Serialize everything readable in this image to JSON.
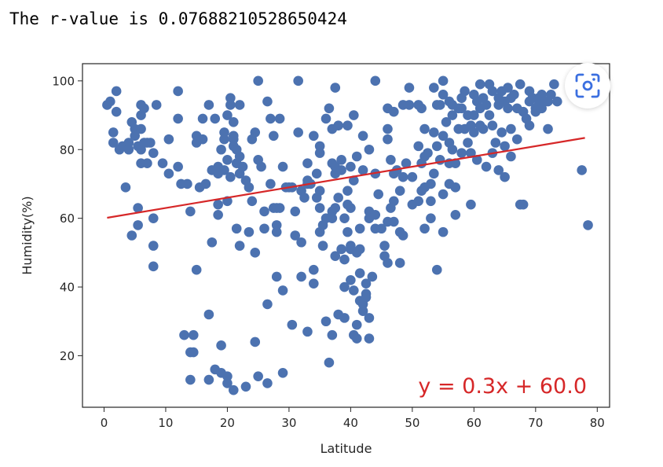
{
  "output": {
    "text": "The r-value is 0.07688210528650424"
  },
  "icons": {
    "scan_button": "visual-search-icon"
  },
  "colors": {
    "points": "#4c72b0",
    "regression_line": "#d62728",
    "annotation": "#d62728",
    "icon": "#3b6fe0"
  },
  "chart_data": {
    "type": "scatter",
    "title": "",
    "xlabel": "Latitude",
    "ylabel": "Humidity(%)",
    "xlim": [
      -3.5,
      82
    ],
    "ylim": [
      5,
      105
    ],
    "xticks": [
      0,
      10,
      20,
      30,
      40,
      50,
      60,
      70,
      80
    ],
    "yticks": [
      20,
      40,
      60,
      80,
      100
    ],
    "grid": false,
    "regression": {
      "slope": 0.3,
      "intercept": 60.0,
      "x_range": [
        0.5,
        78
      ],
      "label": "y = 0.3x + 60.0"
    },
    "points": [
      [
        0.5,
        93
      ],
      [
        1,
        94
      ],
      [
        1.5,
        82
      ],
      [
        1.5,
        85
      ],
      [
        2,
        97
      ],
      [
        2,
        91
      ],
      [
        2.5,
        80
      ],
      [
        3,
        81
      ],
      [
        3.5,
        69
      ],
      [
        4,
        82
      ],
      [
        4,
        80
      ],
      [
        4.5,
        55
      ],
      [
        4.5,
        88
      ],
      [
        5,
        86
      ],
      [
        5,
        84
      ],
      [
        5.5,
        81
      ],
      [
        5.5,
        63
      ],
      [
        5.5,
        58
      ],
      [
        6,
        93
      ],
      [
        6,
        90
      ],
      [
        6,
        86
      ],
      [
        6,
        80
      ],
      [
        6,
        76
      ],
      [
        6.5,
        92
      ],
      [
        6.5,
        82
      ],
      [
        7,
        82
      ],
      [
        7,
        76
      ],
      [
        7.5,
        82
      ],
      [
        8,
        79
      ],
      [
        8,
        60
      ],
      [
        8,
        52
      ],
      [
        8,
        46
      ],
      [
        8.5,
        93
      ],
      [
        9.5,
        76
      ],
      [
        10.5,
        73
      ],
      [
        10.5,
        83
      ],
      [
        12,
        97
      ],
      [
        12,
        89
      ],
      [
        12,
        75
      ],
      [
        12.5,
        70
      ],
      [
        13,
        26
      ],
      [
        13.5,
        70
      ],
      [
        14,
        62
      ],
      [
        14,
        21
      ],
      [
        14,
        13
      ],
      [
        14.5,
        26
      ],
      [
        14.5,
        21
      ],
      [
        15,
        84
      ],
      [
        15,
        82
      ],
      [
        15,
        45
      ],
      [
        15.5,
        69
      ],
      [
        16,
        83
      ],
      [
        16,
        89
      ],
      [
        16.5,
        70
      ],
      [
        17,
        32
      ],
      [
        17,
        13
      ],
      [
        17,
        93
      ],
      [
        17.5,
        74
      ],
      [
        17.5,
        53
      ],
      [
        18,
        89
      ],
      [
        18,
        16
      ],
      [
        18.5,
        75
      ],
      [
        18.5,
        73
      ],
      [
        18.5,
        64
      ],
      [
        18.5,
        61
      ],
      [
        19,
        23
      ],
      [
        19,
        15
      ],
      [
        19,
        80
      ],
      [
        19.5,
        83
      ],
      [
        19.5,
        85
      ],
      [
        19.5,
        74
      ],
      [
        20,
        90
      ],
      [
        20,
        77
      ],
      [
        20,
        65
      ],
      [
        20,
        14
      ],
      [
        20,
        12
      ],
      [
        20.5,
        95
      ],
      [
        20.5,
        93
      ],
      [
        20.5,
        72
      ],
      [
        21,
        88
      ],
      [
        21,
        83
      ],
      [
        21,
        84
      ],
      [
        21,
        81
      ],
      [
        21,
        10
      ],
      [
        21.5,
        57
      ],
      [
        21.5,
        80
      ],
      [
        21.5,
        76
      ],
      [
        22,
        93
      ],
      [
        22,
        52
      ],
      [
        22,
        78
      ],
      [
        22,
        73
      ],
      [
        22.5,
        75
      ],
      [
        23,
        71
      ],
      [
        23,
        11
      ],
      [
        23.5,
        56
      ],
      [
        23.5,
        69
      ],
      [
        24,
        65
      ],
      [
        24,
        83
      ],
      [
        24.5,
        85
      ],
      [
        24.5,
        24
      ],
      [
        24.5,
        50
      ],
      [
        25,
        100
      ],
      [
        25,
        14
      ],
      [
        25,
        77
      ],
      [
        25.5,
        75
      ],
      [
        26,
        57
      ],
      [
        26,
        62
      ],
      [
        26.5,
        94
      ],
      [
        26.5,
        35
      ],
      [
        26.5,
        12
      ],
      [
        27,
        70
      ],
      [
        27,
        89
      ],
      [
        27.5,
        84
      ],
      [
        27.5,
        63
      ],
      [
        28,
        58
      ],
      [
        28,
        56
      ],
      [
        28,
        43
      ],
      [
        28,
        63
      ],
      [
        28.5,
        89
      ],
      [
        28.5,
        63
      ],
      [
        29,
        75
      ],
      [
        29,
        39
      ],
      [
        29,
        15
      ],
      [
        29.5,
        69
      ],
      [
        30,
        69
      ],
      [
        30.5,
        29
      ],
      [
        30.5,
        69
      ],
      [
        31,
        62
      ],
      [
        31,
        55
      ],
      [
        31.5,
        100
      ],
      [
        31.5,
        85
      ],
      [
        32,
        53
      ],
      [
        32,
        68
      ],
      [
        32,
        43
      ],
      [
        32.5,
        66
      ],
      [
        33,
        70
      ],
      [
        33,
        76
      ],
      [
        33,
        71
      ],
      [
        33,
        27
      ],
      [
        33.5,
        70
      ],
      [
        34,
        84
      ],
      [
        34,
        45
      ],
      [
        34,
        41
      ],
      [
        34.5,
        66
      ],
      [
        34.5,
        73
      ],
      [
        35,
        81
      ],
      [
        35,
        79
      ],
      [
        35,
        68
      ],
      [
        35,
        63
      ],
      [
        35,
        56
      ],
      [
        35.5,
        58
      ],
      [
        35.5,
        52
      ],
      [
        36,
        89
      ],
      [
        36,
        60
      ],
      [
        36,
        30
      ],
      [
        36.5,
        92
      ],
      [
        36.5,
        18
      ],
      [
        37,
        86
      ],
      [
        37,
        76
      ],
      [
        37,
        62
      ],
      [
        37,
        60
      ],
      [
        37,
        26
      ],
      [
        37.5,
        98
      ],
      [
        37.5,
        75
      ],
      [
        37.5,
        73
      ],
      [
        37.5,
        63
      ],
      [
        37.5,
        49
      ],
      [
        38,
        87
      ],
      [
        38,
        66
      ],
      [
        38,
        32
      ],
      [
        38.5,
        77
      ],
      [
        38.5,
        74
      ],
      [
        38.5,
        51
      ],
      [
        39,
        60
      ],
      [
        39,
        48
      ],
      [
        39,
        40
      ],
      [
        39,
        31
      ],
      [
        39.5,
        87
      ],
      [
        39.5,
        68
      ],
      [
        39.5,
        64
      ],
      [
        39.5,
        56
      ],
      [
        40,
        75
      ],
      [
        40,
        63
      ],
      [
        40,
        52
      ],
      [
        40,
        51
      ],
      [
        40,
        42
      ],
      [
        40.5,
        90
      ],
      [
        40.5,
        71
      ],
      [
        40.5,
        39
      ],
      [
        40.5,
        26
      ],
      [
        41,
        78
      ],
      [
        41,
        50
      ],
      [
        41,
        29
      ],
      [
        41,
        25
      ],
      [
        41.5,
        57
      ],
      [
        41.5,
        51
      ],
      [
        41.5,
        44
      ],
      [
        41.5,
        36
      ],
      [
        42,
        84
      ],
      [
        42,
        74
      ],
      [
        42,
        35
      ],
      [
        42,
        33
      ],
      [
        42.5,
        41
      ],
      [
        42.5,
        38
      ],
      [
        42.5,
        37
      ],
      [
        43,
        80
      ],
      [
        43,
        62
      ],
      [
        43,
        60
      ],
      [
        43,
        31
      ],
      [
        43,
        25
      ],
      [
        43.5,
        43
      ],
      [
        44,
        100
      ],
      [
        44,
        61
      ],
      [
        44,
        57
      ],
      [
        44,
        73
      ],
      [
        44.5,
        67
      ],
      [
        45,
        57
      ],
      [
        45.5,
        52
      ],
      [
        45.5,
        49
      ],
      [
        46,
        92
      ],
      [
        46,
        86
      ],
      [
        46,
        83
      ],
      [
        46,
        59
      ],
      [
        46,
        47
      ],
      [
        46.5,
        63
      ],
      [
        46.5,
        77
      ],
      [
        47,
        91
      ],
      [
        47,
        73
      ],
      [
        47,
        65
      ],
      [
        47,
        59
      ],
      [
        47.5,
        74
      ],
      [
        48,
        68
      ],
      [
        48,
        56
      ],
      [
        48,
        47
      ],
      [
        48.5,
        93
      ],
      [
        48.5,
        72
      ],
      [
        48.5,
        55
      ],
      [
        49,
        76
      ],
      [
        49.5,
        98
      ],
      [
        49.5,
        93
      ],
      [
        50,
        72
      ],
      [
        50,
        64
      ],
      [
        51,
        93
      ],
      [
        51,
        81
      ],
      [
        51,
        65
      ],
      [
        51.5,
        92
      ],
      [
        51.5,
        68
      ],
      [
        51.5,
        76
      ],
      [
        52,
        86
      ],
      [
        52,
        78
      ],
      [
        52,
        69
      ],
      [
        52,
        57
      ],
      [
        52.5,
        79
      ],
      [
        53,
        70
      ],
      [
        53,
        65
      ],
      [
        53,
        60
      ],
      [
        53.5,
        98
      ],
      [
        53.5,
        85
      ],
      [
        53.5,
        73
      ],
      [
        54,
        45
      ],
      [
        54,
        93
      ],
      [
        54,
        81
      ],
      [
        54.5,
        93
      ],
      [
        54.5,
        77
      ],
      [
        55,
        96
      ],
      [
        55,
        100
      ],
      [
        55,
        84
      ],
      [
        55,
        67
      ],
      [
        55,
        56
      ],
      [
        55.5,
        88
      ],
      [
        56,
        94
      ],
      [
        56,
        82
      ],
      [
        56,
        70
      ],
      [
        56,
        76
      ],
      [
        56.5,
        93
      ],
      [
        56.5,
        90
      ],
      [
        56.5,
        80
      ],
      [
        57,
        69
      ],
      [
        57,
        61
      ],
      [
        57,
        76
      ],
      [
        57.5,
        92
      ],
      [
        57.5,
        86
      ],
      [
        58,
        95
      ],
      [
        58,
        79
      ],
      [
        58,
        92
      ],
      [
        58.5,
        97
      ],
      [
        58.5,
        86
      ],
      [
        59,
        82
      ],
      [
        59,
        90
      ],
      [
        59.5,
        87
      ],
      [
        59.5,
        79
      ],
      [
        59.5,
        64
      ],
      [
        60,
        96
      ],
      [
        60,
        90
      ],
      [
        60,
        85
      ],
      [
        60.5,
        94
      ],
      [
        60.5,
        77
      ],
      [
        61,
        99
      ],
      [
        61,
        92
      ],
      [
        61,
        87
      ],
      [
        61.5,
        95
      ],
      [
        61.5,
        86
      ],
      [
        62,
        93
      ],
      [
        62,
        75
      ],
      [
        62.5,
        99
      ],
      [
        62.5,
        90
      ],
      [
        63,
        97
      ],
      [
        63,
        87
      ],
      [
        63,
        79
      ],
      [
        63.5,
        82
      ],
      [
        64,
        95
      ],
      [
        64,
        93
      ],
      [
        64,
        74
      ],
      [
        64.5,
        97
      ],
      [
        64.5,
        85
      ],
      [
        65,
        94
      ],
      [
        65,
        81
      ],
      [
        65,
        72
      ],
      [
        65.5,
        98
      ],
      [
        65.5,
        92
      ],
      [
        66,
        95
      ],
      [
        66,
        86
      ],
      [
        66,
        78
      ],
      [
        66.5,
        96
      ],
      [
        67,
        92
      ],
      [
        67,
        83
      ],
      [
        67.5,
        99
      ],
      [
        67.5,
        64
      ],
      [
        68,
        91
      ],
      [
        68,
        64
      ],
      [
        68.5,
        89
      ],
      [
        69,
        97
      ],
      [
        69,
        94
      ],
      [
        69,
        87
      ],
      [
        69.5,
        95
      ],
      [
        70,
        92
      ],
      [
        70,
        91
      ],
      [
        70.5,
        95
      ],
      [
        70.5,
        93
      ],
      [
        71,
        96
      ],
      [
        71,
        92
      ],
      [
        71.5,
        94
      ],
      [
        72,
        94
      ],
      [
        72,
        86
      ],
      [
        72.5,
        96
      ],
      [
        73,
        99
      ],
      [
        73.5,
        94
      ],
      [
        77.5,
        74
      ],
      [
        78.5,
        58
      ]
    ]
  }
}
